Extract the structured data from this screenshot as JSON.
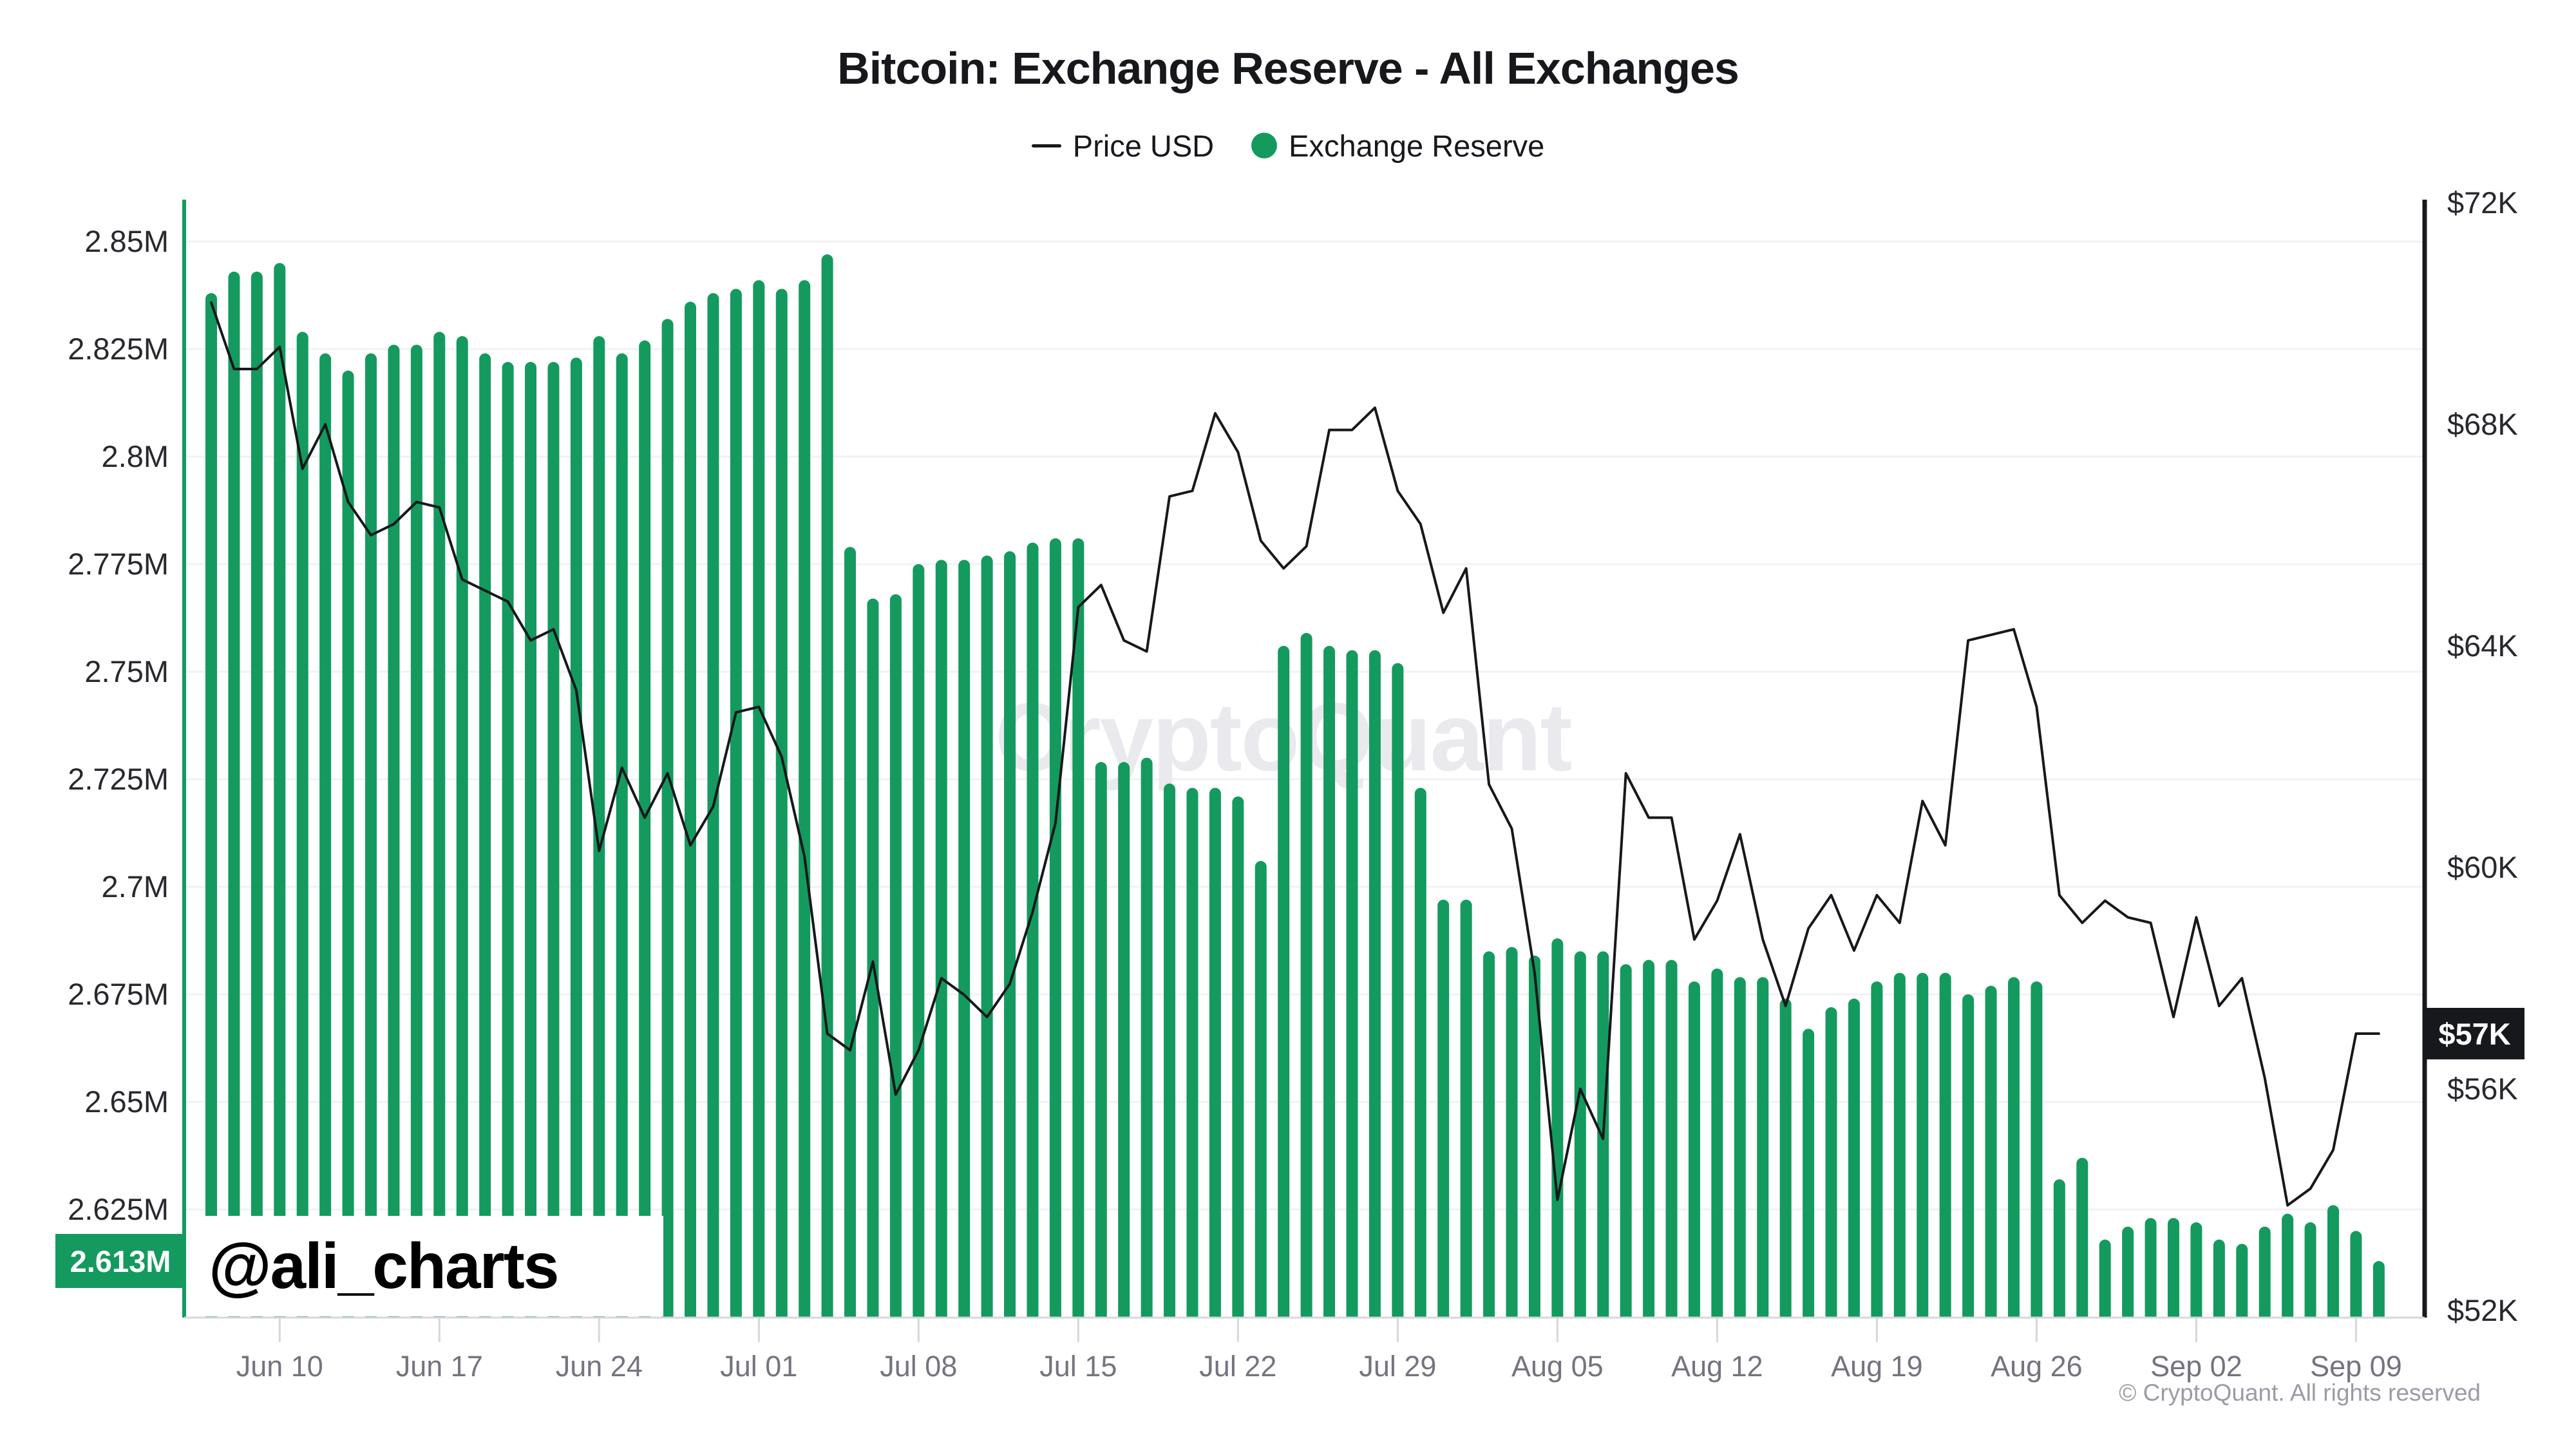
{
  "title": "Bitcoin: Exchange Reserve - All Exchanges",
  "legend": {
    "price_label": "Price USD",
    "reserve_label": "Exchange Reserve"
  },
  "watermark": "CryptoQuant",
  "attribution": "@ali_charts",
  "copyright": "© CryptoQuant. All rights reserved",
  "badges": {
    "reserve_current": "2.613M",
    "price_current": "$57K"
  },
  "colors": {
    "reserve_green": "#149a5e",
    "price_black": "#17181c",
    "grid": "#f2f2f5",
    "axis_bottom": "#d7d7dc",
    "tick_text_dark": "#28282e",
    "tick_text_gray": "#74747f",
    "watermark_gray": "#e9e9ee"
  },
  "chart_data": {
    "type": "bar+line",
    "title": "Bitcoin: Exchange Reserve - All Exchanges",
    "grid": "horizontal",
    "legend_position": "top-center",
    "x": [
      "Jun 07",
      "Jun 08",
      "Jun 09",
      "Jun 10",
      "Jun 11",
      "Jun 12",
      "Jun 13",
      "Jun 14",
      "Jun 15",
      "Jun 16",
      "Jun 17",
      "Jun 18",
      "Jun 19",
      "Jun 20",
      "Jun 21",
      "Jun 22",
      "Jun 23",
      "Jun 24",
      "Jun 25",
      "Jun 26",
      "Jun 27",
      "Jun 28",
      "Jun 29",
      "Jun 30",
      "Jul 01",
      "Jul 02",
      "Jul 03",
      "Jul 04",
      "Jul 05",
      "Jul 06",
      "Jul 07",
      "Jul 08",
      "Jul 09",
      "Jul 10",
      "Jul 11",
      "Jul 12",
      "Jul 13",
      "Jul 14",
      "Jul 15",
      "Jul 16",
      "Jul 17",
      "Jul 18",
      "Jul 19",
      "Jul 20",
      "Jul 21",
      "Jul 22",
      "Jul 23",
      "Jul 24",
      "Jul 25",
      "Jul 26",
      "Jul 27",
      "Jul 28",
      "Jul 29",
      "Jul 30",
      "Jul 31",
      "Aug 01",
      "Aug 02",
      "Aug 03",
      "Aug 04",
      "Aug 05",
      "Aug 06",
      "Aug 07",
      "Aug 08",
      "Aug 09",
      "Aug 10",
      "Aug 11",
      "Aug 12",
      "Aug 13",
      "Aug 14",
      "Aug 15",
      "Aug 16",
      "Aug 17",
      "Aug 18",
      "Aug 19",
      "Aug 20",
      "Aug 21",
      "Aug 22",
      "Aug 23",
      "Aug 24",
      "Aug 25",
      "Aug 26",
      "Aug 27",
      "Aug 28",
      "Aug 29",
      "Aug 30",
      "Aug 31",
      "Sep 01",
      "Sep 02",
      "Sep 03",
      "Sep 04",
      "Sep 05",
      "Sep 06",
      "Sep 07",
      "Sep 08",
      "Sep 09",
      "Sep 10"
    ],
    "series": [
      {
        "name": "Exchange Reserve",
        "type": "bar",
        "axis": "left",
        "unit": "M BTC",
        "color": "#149a5e",
        "values": [
          2.838,
          2.843,
          2.843,
          2.845,
          2.829,
          2.824,
          2.82,
          2.824,
          2.826,
          2.826,
          2.829,
          2.828,
          2.824,
          2.822,
          2.822,
          2.822,
          2.823,
          2.828,
          2.824,
          2.827,
          2.832,
          2.836,
          2.838,
          2.839,
          2.841,
          2.839,
          2.841,
          2.847,
          2.779,
          2.767,
          2.768,
          2.775,
          2.776,
          2.776,
          2.777,
          2.778,
          2.78,
          2.781,
          2.781,
          2.729,
          2.729,
          2.73,
          2.724,
          2.723,
          2.723,
          2.721,
          2.706,
          2.756,
          2.759,
          2.756,
          2.755,
          2.755,
          2.752,
          2.723,
          2.697,
          2.697,
          2.685,
          2.686,
          2.684,
          2.688,
          2.685,
          2.685,
          2.682,
          2.683,
          2.683,
          2.678,
          2.681,
          2.679,
          2.679,
          2.674,
          2.667,
          2.672,
          2.674,
          2.678,
          2.68,
          2.68,
          2.68,
          2.675,
          2.677,
          2.679,
          2.678,
          2.632,
          2.637,
          2.618,
          2.621,
          2.623,
          2.623,
          2.622,
          2.618,
          2.617,
          2.621,
          2.624,
          2.622,
          2.626,
          2.62,
          2.613
        ]
      },
      {
        "name": "Price USD",
        "type": "line",
        "axis": "right",
        "unit": "K USD",
        "color": "#17181c",
        "values": [
          70.2,
          69.0,
          69.0,
          69.4,
          67.2,
          68.0,
          66.6,
          66.0,
          66.2,
          66.6,
          66.5,
          65.2,
          65.0,
          64.8,
          64.1,
          64.3,
          63.2,
          60.3,
          61.8,
          60.9,
          61.7,
          60.4,
          61.1,
          62.8,
          62.9,
          62.0,
          60.2,
          57.0,
          56.7,
          58.3,
          55.9,
          56.7,
          58.0,
          57.7,
          57.3,
          57.9,
          59.2,
          60.8,
          64.7,
          65.1,
          64.1,
          63.9,
          66.7,
          66.8,
          68.2,
          67.5,
          65.9,
          65.4,
          65.8,
          67.9,
          67.9,
          68.3,
          66.8,
          66.2,
          64.6,
          65.4,
          61.5,
          60.7,
          58.1,
          54.0,
          56.0,
          55.1,
          61.7,
          60.9,
          60.9,
          58.7,
          59.4,
          60.6,
          58.7,
          57.5,
          58.9,
          59.5,
          58.5,
          59.5,
          59.0,
          61.2,
          60.4,
          64.1,
          64.2,
          64.3,
          62.9,
          59.5,
          59.0,
          59.4,
          59.1,
          59.0,
          57.3,
          59.1,
          57.5,
          58.0,
          56.2,
          53.9,
          54.2,
          54.9,
          57.0,
          57.0
        ]
      }
    ],
    "left_axis": {
      "tick_labels": [
        "2.85M",
        "2.825M",
        "2.8M",
        "2.775M",
        "2.75M",
        "2.725M",
        "2.7M",
        "2.675M",
        "2.65M",
        "2.625M"
      ],
      "tick_values": [
        2.85,
        2.825,
        2.8,
        2.775,
        2.75,
        2.725,
        2.7,
        2.675,
        2.65,
        2.625
      ],
      "range": [
        2.6,
        2.86
      ],
      "current_value": 2.613,
      "current_label": "2.613M"
    },
    "right_axis": {
      "tick_labels": [
        "$72K",
        "$68K",
        "$64K",
        "$60K",
        "$56K",
        "$52K"
      ],
      "tick_values": [
        72,
        68,
        64,
        60,
        56,
        52
      ],
      "range": [
        52,
        72
      ],
      "current_value": 57,
      "current_label": "$57K"
    },
    "x_axis": {
      "ticks": [
        {
          "label": "Jun 10",
          "i": 3
        },
        {
          "label": "Jun 17",
          "i": 10
        },
        {
          "label": "Jun 24",
          "i": 17
        },
        {
          "label": "Jul 01",
          "i": 24
        },
        {
          "label": "Jul 08",
          "i": 31
        },
        {
          "label": "Jul 15",
          "i": 38
        },
        {
          "label": "Jul 22",
          "i": 45
        },
        {
          "label": "Jul 29",
          "i": 52
        },
        {
          "label": "Aug 05",
          "i": 59
        },
        {
          "label": "Aug 12",
          "i": 66
        },
        {
          "label": "Aug 19",
          "i": 73
        },
        {
          "label": "Aug 26",
          "i": 80
        },
        {
          "label": "Sep 02",
          "i": 87
        },
        {
          "label": "Sep 09",
          "i": 94
        }
      ]
    }
  }
}
